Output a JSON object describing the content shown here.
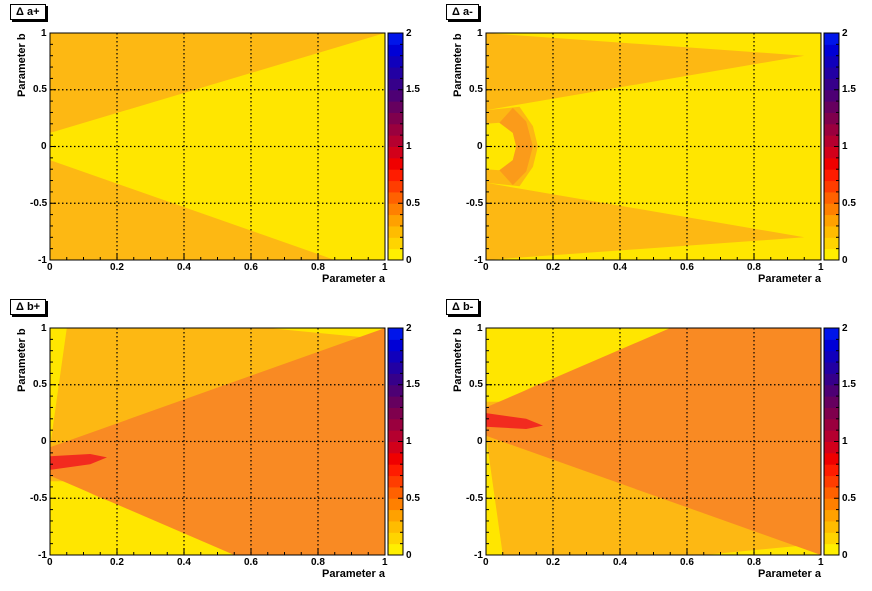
{
  "chart_data": [
    {
      "type": "heatmap",
      "title": "Δ a+",
      "xlabel": "Parameter a",
      "ylabel": "Parameter b",
      "xlim": [
        0,
        1
      ],
      "ylim": [
        -1,
        1
      ],
      "zlim": [
        0,
        2
      ],
      "x_ticks": [
        "0",
        "0.2",
        "0.4",
        "0.6",
        "0.8",
        "1"
      ],
      "y_ticks": [
        "-1",
        "-0.5",
        "0",
        "0.5",
        "1"
      ],
      "z_ticks": [
        "0",
        "0.5",
        "1",
        "1.5",
        "2"
      ],
      "regions": [
        {
          "level": 0.15,
          "shape": "background"
        },
        {
          "level": 0.05,
          "shape": "wedge",
          "points": [
            [
              0,
              0.12
            ],
            [
              1,
              1
            ],
            [
              1,
              -1
            ],
            [
              0.85,
              -1
            ],
            [
              0,
              -0.12
            ]
          ]
        }
      ],
      "grid": true
    },
    {
      "type": "heatmap",
      "title": "Δ a-",
      "xlabel": "Parameter a",
      "ylabel": "Parameter b",
      "xlim": [
        0,
        1
      ],
      "ylim": [
        -1,
        1
      ],
      "zlim": [
        0,
        2
      ],
      "x_ticks": [
        "0",
        "0.2",
        "0.4",
        "0.6",
        "0.8",
        "1"
      ],
      "y_ticks": [
        "-1",
        "-0.5",
        "0",
        "0.5",
        "1"
      ],
      "z_ticks": [
        "0",
        "0.5",
        "1",
        "1.5",
        "2"
      ],
      "regions": [
        {
          "level": 0.05,
          "shape": "background"
        },
        {
          "level": 0.15,
          "shape": "polygon",
          "points": [
            [
              0,
              1
            ],
            [
              0.95,
              0.8
            ],
            [
              0,
              0.32
            ]
          ]
        },
        {
          "level": 0.15,
          "shape": "polygon",
          "points": [
            [
              0,
              -1
            ],
            [
              0.95,
              -0.8
            ],
            [
              0,
              -0.32
            ]
          ]
        },
        {
          "level": 0.15,
          "shape": "polygon",
          "points": [
            [
              0,
              0.32
            ],
            [
              0.1,
              0.35
            ],
            [
              0.14,
              0.18
            ],
            [
              0.155,
              0
            ],
            [
              0.14,
              -0.18
            ],
            [
              0.1,
              -0.35
            ],
            [
              0,
              -0.32
            ]
          ]
        },
        {
          "level": 0.05,
          "shape": "polygon",
          "points": [
            [
              0,
              0.2
            ],
            [
              0.04,
              0.21
            ],
            [
              0.08,
              0.12
            ],
            [
              0.09,
              0
            ],
            [
              0.08,
              -0.12
            ],
            [
              0.04,
              -0.21
            ],
            [
              0,
              -0.2
            ]
          ]
        },
        {
          "level": 0.22,
          "shape": "polygon",
          "points": [
            [
              0.04,
              0.21
            ],
            [
              0.08,
              0.34
            ],
            [
              0.12,
              0.22
            ],
            [
              0.14,
              0
            ],
            [
              0.12,
              -0.22
            ],
            [
              0.08,
              -0.34
            ],
            [
              0.04,
              -0.21
            ],
            [
              0.08,
              -0.12
            ],
            [
              0.09,
              0
            ],
            [
              0.08,
              0.12
            ]
          ]
        }
      ],
      "grid": true
    },
    {
      "type": "heatmap",
      "title": "Δ b+",
      "xlabel": "Parameter a",
      "ylabel": "Parameter b",
      "xlim": [
        0,
        1
      ],
      "ylim": [
        -1,
        1
      ],
      "zlim": [
        0,
        2
      ],
      "x_ticks": [
        "0",
        "0.2",
        "0.4",
        "0.6",
        "0.8",
        "1"
      ],
      "y_ticks": [
        "-1",
        "-0.5",
        "0",
        "0.5",
        "1"
      ],
      "z_ticks": [
        "0",
        "0.5",
        "1",
        "1.5",
        "2"
      ],
      "regions": [
        {
          "level": 0.05,
          "shape": "background"
        },
        {
          "level": 0.15,
          "shape": "polygon",
          "points": [
            [
              0.05,
              1
            ],
            [
              0.65,
              1
            ],
            [
              1,
              0.9
            ],
            [
              1,
              -1
            ],
            [
              0.7,
              -1
            ],
            [
              0.15,
              -0.5
            ],
            [
              0.05,
              -0.35
            ],
            [
              0,
              -0.35
            ],
            [
              0,
              -0.05
            ]
          ]
        },
        {
          "level": 0.3,
          "shape": "polygon",
          "points": [
            [
              0,
              -0.05
            ],
            [
              1,
              1
            ],
            [
              1,
              -1
            ],
            [
              0.55,
              -1
            ],
            [
              0,
              -0.3
            ]
          ]
        },
        {
          "level": 0.6,
          "shape": "polygon",
          "points": [
            [
              0,
              -0.13
            ],
            [
              0.12,
              -0.11
            ],
            [
              0.17,
              -0.14
            ],
            [
              0.12,
              -0.2
            ],
            [
              0,
              -0.25
            ]
          ]
        }
      ],
      "grid": true
    },
    {
      "type": "heatmap",
      "title": "Δ b-",
      "xlabel": "Parameter a",
      "ylabel": "Parameter b",
      "xlim": [
        0,
        1
      ],
      "ylim": [
        -1,
        1
      ],
      "zlim": [
        0,
        2
      ],
      "x_ticks": [
        "0",
        "0.2",
        "0.4",
        "0.6",
        "0.8",
        "1"
      ],
      "y_ticks": [
        "-1",
        "-0.5",
        "0",
        "0.5",
        "1"
      ],
      "z_ticks": [
        "0",
        "0.5",
        "1",
        "1.5",
        "2"
      ],
      "regions": [
        {
          "level": 0.05,
          "shape": "background"
        },
        {
          "level": 0.15,
          "shape": "polygon",
          "points": [
            [
              0.05,
              -1
            ],
            [
              0.65,
              -1
            ],
            [
              1,
              -0.9
            ],
            [
              1,
              1
            ],
            [
              0.7,
              1
            ],
            [
              0.15,
              0.5
            ],
            [
              0.05,
              0.35
            ],
            [
              0,
              0.35
            ],
            [
              0,
              0.05
            ]
          ]
        },
        {
          "level": 0.3,
          "shape": "polygon",
          "points": [
            [
              0,
              0.05
            ],
            [
              1,
              -1
            ],
            [
              1,
              1
            ],
            [
              0.55,
              1
            ],
            [
              0,
              0.3
            ]
          ]
        },
        {
          "level": 0.6,
          "shape": "polygon",
          "points": [
            [
              0,
              0.13
            ],
            [
              0.12,
              0.11
            ],
            [
              0.17,
              0.14
            ],
            [
              0.12,
              0.2
            ],
            [
              0,
              0.25
            ]
          ]
        }
      ],
      "grid": true
    }
  ],
  "palette": {
    "levels": [
      0.05,
      0.15,
      0.22,
      0.3,
      0.6
    ],
    "colors": [
      "#ffe600",
      "#fdb813",
      "#fb9b1a",
      "#f98a23",
      "#f22b1f"
    ],
    "colorbar": [
      "#ffef00",
      "#ffd400",
      "#ffbc00",
      "#ffa100",
      "#ff8000",
      "#ff6100",
      "#ff3d00",
      "#ff1c00",
      "#f00000",
      "#d2001a",
      "#b5002f",
      "#9a003e",
      "#7f004d",
      "#66005f",
      "#4d0074",
      "#36008a",
      "#2200a3",
      "#1000bc",
      "#0000d6",
      "#0015ea"
    ]
  }
}
